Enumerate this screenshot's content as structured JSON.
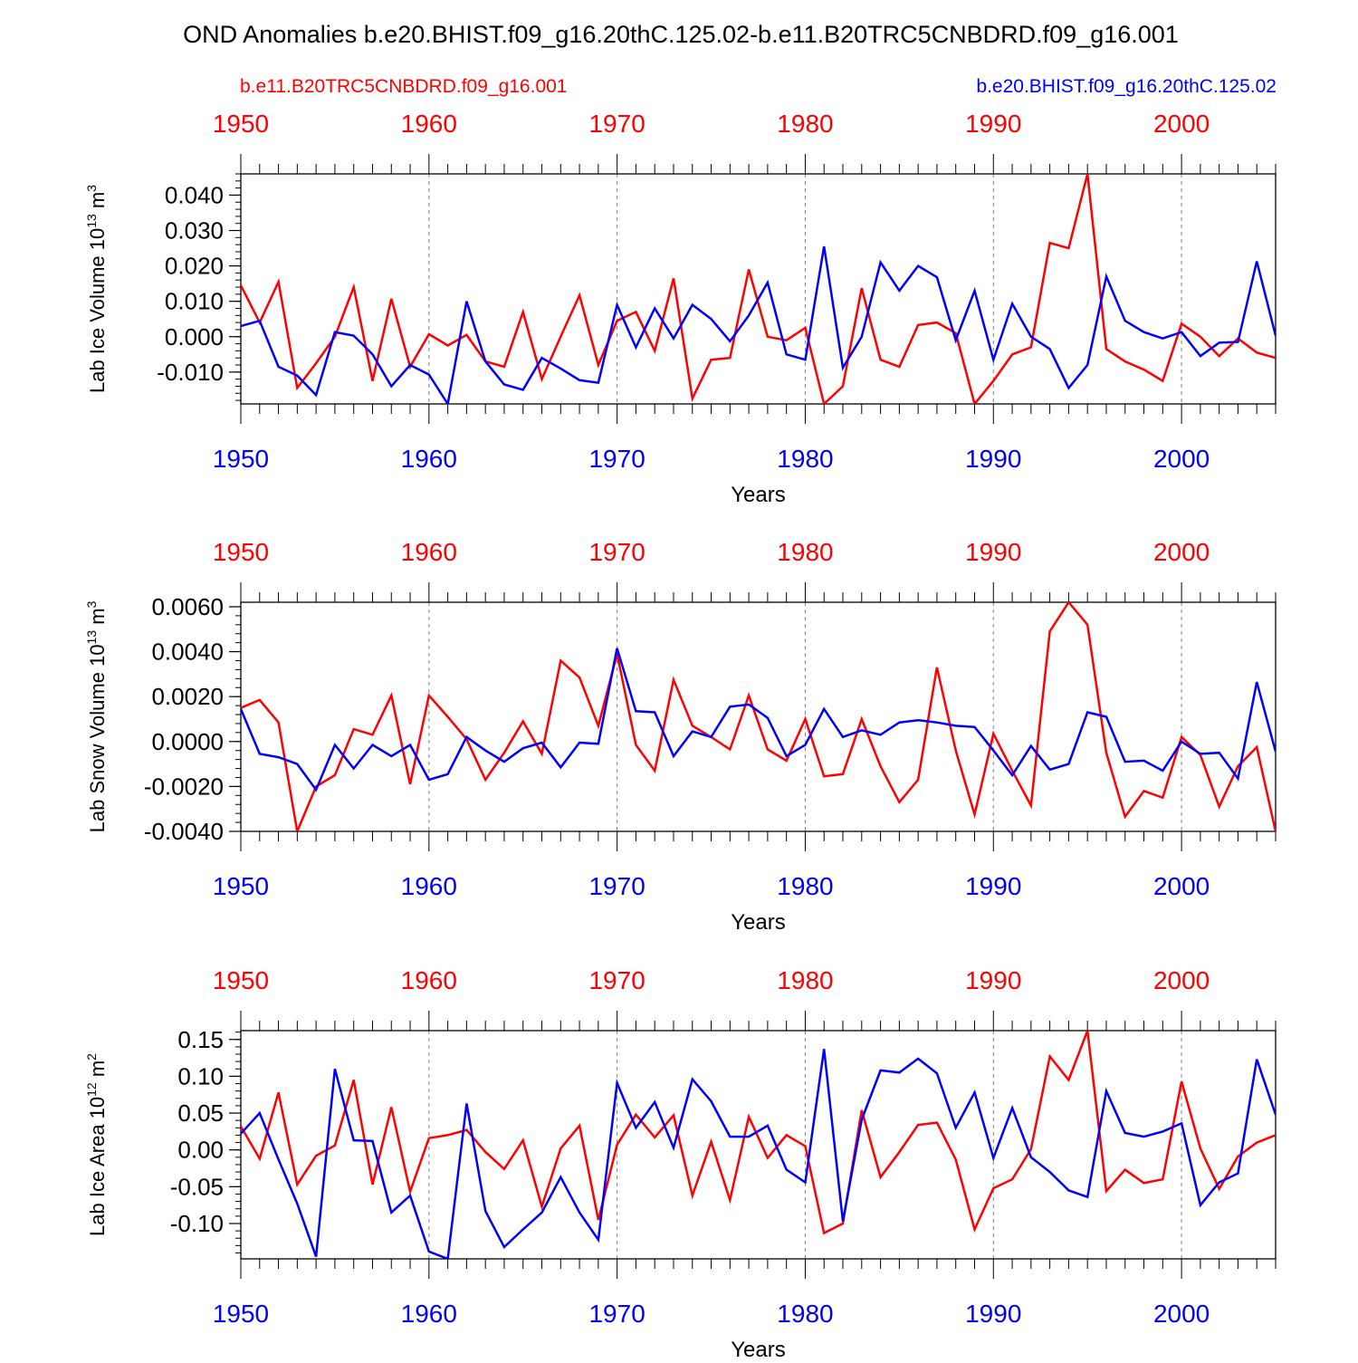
{
  "title": "OND Anomalies b.e20.BHIST.f09_g16.20thC.125.02-b.e11.B20TRC5CNBDRD.f09_g16.001",
  "legend": {
    "red_label": "b.e11.B20TRC5CNBDRD.f09_g16.001",
    "blue_label": "b.e20.BHIST.f09_g16.20thC.125.02"
  },
  "colors": {
    "red": "#ff0000",
    "blue": "#0000ff",
    "axis": "#000000",
    "grid": "#808080"
  },
  "chart_data": [
    {
      "type": "line",
      "ylabel": "Lab Ice Volume",
      "yunit_base": "10",
      "yunit_exp": "13",
      "yunit_tail": "m",
      "yunit_tail_exp": "3",
      "xlabel": "Years",
      "xlim": [
        1950,
        2005
      ],
      "ylim": [
        -0.019,
        0.046
      ],
      "yticks": [
        -0.01,
        0.0,
        0.01,
        0.02,
        0.03,
        0.04
      ],
      "ytick_labels": [
        "-0.010",
        "0.000",
        "0.010",
        "0.020",
        "0.030",
        "0.040"
      ],
      "xticks": [
        1950,
        1960,
        1970,
        1980,
        1990,
        2000
      ],
      "xtick_labels": [
        "1950",
        "1960",
        "1970",
        "1980",
        "1990",
        "2000"
      ],
      "series": [
        {
          "name": "b.e11.B20TRC5CNBDRD.f09_g16.001",
          "color": "red",
          "values": [
            0.0145,
            0.004,
            0.0155,
            -0.0145,
            -0.0075,
            0.0,
            0.014,
            -0.0125,
            0.0107,
            -0.0085,
            0.0007,
            -0.0025,
            0.0005,
            -0.007,
            -0.0085,
            0.007,
            -0.012,
            0.0,
            0.0117,
            -0.008,
            0.0045,
            0.007,
            -0.004,
            0.0165,
            -0.0175,
            -0.0065,
            -0.006,
            0.019,
            0.0,
            -0.001,
            0.0025,
            -0.019,
            -0.014,
            0.0137,
            -0.0065,
            -0.0085,
            0.0033,
            0.004,
            0.001,
            -0.019,
            -0.0125,
            -0.005,
            -0.003,
            0.0265,
            0.025,
            0.046,
            -0.0035,
            -0.007,
            -0.0093,
            -0.0125,
            0.0037,
            0.0,
            -0.0055,
            -0.0005,
            -0.0045,
            -0.006
          ]
        },
        {
          "name": "b.e20.BHIST.f09_g16.20thC.125.02",
          "color": "blue",
          "values": [
            0.003,
            0.0045,
            -0.0085,
            -0.011,
            -0.0165,
            0.0013,
            0.0003,
            -0.005,
            -0.014,
            -0.008,
            -0.0107,
            -0.019,
            0.01,
            -0.007,
            -0.0135,
            -0.015,
            -0.006,
            -0.009,
            -0.0123,
            -0.013,
            0.009,
            -0.003,
            0.008,
            -0.0005,
            0.009,
            0.005,
            -0.0013,
            0.006,
            0.0153,
            -0.005,
            -0.0065,
            0.0255,
            -0.0088,
            0.0,
            0.021,
            0.013,
            0.02,
            0.0168,
            -0.001,
            0.013,
            -0.0065,
            0.0093,
            0.0,
            -0.0035,
            -0.0145,
            -0.008,
            0.017,
            0.0045,
            0.0013,
            -0.0005,
            0.0013,
            -0.0055,
            -0.0017,
            -0.0015,
            0.0213,
            0.0003
          ]
        }
      ]
    },
    {
      "type": "line",
      "ylabel": "Lab Snow Volume",
      "yunit_base": "10",
      "yunit_exp": "13",
      "yunit_tail": "m",
      "yunit_tail_exp": "3",
      "xlabel": "Years",
      "xlim": [
        1950,
        2005
      ],
      "ylim": [
        -0.004,
        0.0062
      ],
      "yticks": [
        -0.004,
        -0.002,
        0.0,
        0.002,
        0.004,
        0.006
      ],
      "ytick_labels": [
        "-0.0040",
        "-0.0020",
        "0.0000",
        "0.0020",
        "0.0040",
        "0.0060"
      ],
      "xticks": [
        1950,
        1960,
        1970,
        1980,
        1990,
        2000
      ],
      "xtick_labels": [
        "1950",
        "1960",
        "1970",
        "1980",
        "1990",
        "2000"
      ],
      "series": [
        {
          "name": "b.e11.B20TRC5CNBDRD.f09_g16.001",
          "color": "red",
          "values": [
            0.0015,
            0.00185,
            0.00085,
            -0.004,
            -0.002,
            -0.0015,
            0.00055,
            0.0003,
            0.00205,
            -0.0019,
            0.00205,
            0.0011,
            0.0001,
            -0.0017,
            -0.0005,
            0.0009,
            -0.00055,
            0.0036,
            0.00285,
            0.0007,
            0.0039,
            -0.00015,
            -0.0013,
            0.00275,
            0.0007,
            0.0002,
            -0.00035,
            0.00205,
            -0.00035,
            -0.00085,
            0.001,
            -0.00155,
            -0.00145,
            0.001,
            -0.0011,
            -0.0027,
            -0.0017,
            0.0033,
            -0.0004,
            -0.00325,
            0.00035,
            -0.0013,
            -0.00285,
            0.0049,
            0.0062,
            0.0052,
            -0.0005,
            -0.00335,
            -0.0022,
            -0.0025,
            0.0002,
            -0.0006,
            -0.0029,
            -0.0011,
            -0.00025,
            -0.004
          ]
        },
        {
          "name": "b.e20.BHIST.f09_g16.20thC.125.02",
          "color": "blue",
          "values": [
            0.00145,
            -0.00055,
            -0.0007,
            -0.001,
            -0.00215,
            -0.00015,
            -0.0012,
            -0.00015,
            -0.00065,
            -0.00015,
            -0.0017,
            -0.00145,
            0.0002,
            -0.0004,
            -0.0009,
            -0.0003,
            -5e-05,
            -0.00115,
            -5e-05,
            -0.0001,
            0.00415,
            0.00135,
            0.0013,
            -0.00065,
            0.00045,
            0.0002,
            0.00155,
            0.00165,
            0.00105,
            -0.00065,
            -0.00015,
            0.00145,
            0.0002,
            0.0005,
            0.0003,
            0.00085,
            0.00095,
            0.00085,
            0.0007,
            0.00065,
            -0.0004,
            -0.0015,
            -0.0002,
            -0.00125,
            -0.001,
            0.0013,
            0.0011,
            -0.0009,
            -0.00085,
            -0.0013,
            0.0,
            -0.00055,
            -0.0005,
            -0.00165,
            0.00265,
            -0.00045
          ]
        }
      ]
    },
    {
      "type": "line",
      "ylabel": "Lab Ice Area",
      "yunit_base": "10",
      "yunit_exp": "12",
      "yunit_tail": "m",
      "yunit_tail_exp": "2",
      "xlabel": "Years",
      "xlim": [
        1950,
        2005
      ],
      "ylim": [
        -0.148,
        0.162
      ],
      "yticks": [
        -0.1,
        -0.05,
        0.0,
        0.05,
        0.1,
        0.15
      ],
      "ytick_labels": [
        "-0.10",
        "-0.05",
        "0.00",
        "0.05",
        "0.10",
        "0.15"
      ],
      "xticks": [
        1950,
        1960,
        1970,
        1980,
        1990,
        2000
      ],
      "xtick_labels": [
        "1950",
        "1960",
        "1970",
        "1980",
        "1990",
        "2000"
      ],
      "series": [
        {
          "name": "b.e11.B20TRC5CNBDRD.f09_g16.001",
          "color": "red",
          "values": [
            0.032,
            -0.012,
            0.078,
            -0.047,
            -0.008,
            0.006,
            0.095,
            -0.047,
            0.058,
            -0.057,
            0.016,
            0.02,
            0.027,
            -0.003,
            -0.026,
            0.013,
            -0.077,
            0.002,
            0.033,
            -0.095,
            0.007,
            0.048,
            0.017,
            0.047,
            -0.062,
            0.011,
            -0.068,
            0.045,
            -0.011,
            0.02,
            0.005,
            -0.113,
            -0.1,
            0.054,
            -0.037,
            -0.003,
            0.034,
            0.037,
            -0.013,
            -0.108,
            -0.052,
            -0.04,
            0.001,
            0.127,
            0.095,
            0.162,
            -0.056,
            -0.027,
            -0.045,
            -0.04,
            0.093,
            0.002,
            -0.053,
            -0.009,
            0.01,
            0.02
          ]
        },
        {
          "name": "b.e20.BHIST.f09_g16.20thC.125.02",
          "color": "blue",
          "values": [
            0.022,
            0.05,
            -0.013,
            -0.073,
            -0.145,
            0.11,
            0.013,
            0.012,
            -0.085,
            -0.062,
            -0.138,
            -0.148,
            0.063,
            -0.083,
            -0.132,
            -0.108,
            -0.085,
            -0.037,
            -0.085,
            -0.122,
            0.091,
            0.03,
            0.065,
            0.003,
            0.096,
            0.066,
            0.018,
            0.018,
            0.033,
            -0.027,
            -0.044,
            0.137,
            -0.097,
            0.041,
            0.108,
            0.105,
            0.124,
            0.104,
            0.03,
            0.078,
            -0.011,
            0.057,
            -0.01,
            -0.03,
            -0.055,
            -0.064,
            0.08,
            0.023,
            0.018,
            0.025,
            0.036,
            -0.075,
            -0.044,
            -0.032,
            0.123,
            0.048
          ]
        }
      ]
    }
  ]
}
